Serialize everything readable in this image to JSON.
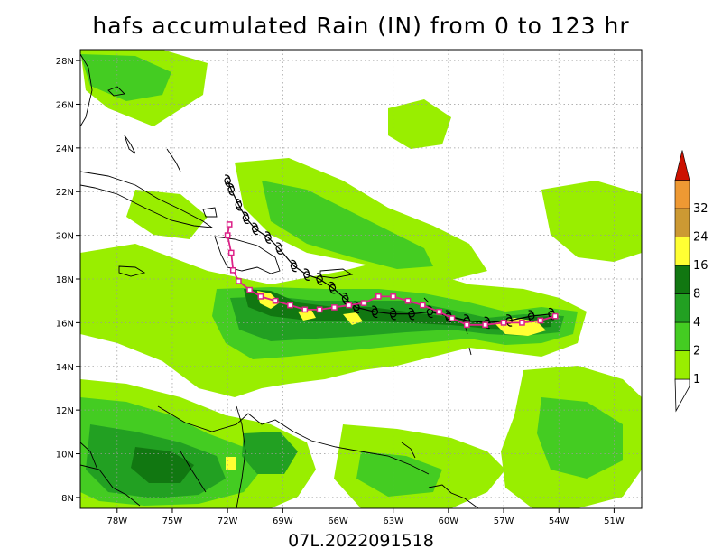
{
  "title": "hafs accumulated Rain (IN) from 0 to 123 hr",
  "footer": "07L.2022091518",
  "map": {
    "lon_range": [
      -80,
      -49.5
    ],
    "lat_range": [
      7.5,
      28.5
    ],
    "lon_ticks": [
      {
        "lon": -78,
        "label": "78W"
      },
      {
        "lon": -75,
        "label": "75W"
      },
      {
        "lon": -72,
        "label": "72W"
      },
      {
        "lon": -69,
        "label": "69W"
      },
      {
        "lon": -66,
        "label": "66W"
      },
      {
        "lon": -63,
        "label": "63W"
      },
      {
        "lon": -60,
        "label": "60W"
      },
      {
        "lon": -57,
        "label": "57W"
      },
      {
        "lon": -54,
        "label": "54W"
      },
      {
        "lon": -51,
        "label": "51W"
      }
    ],
    "lat_ticks": [
      {
        "lat": 8,
        "label": "8N"
      },
      {
        "lat": 10,
        "label": "10N"
      },
      {
        "lat": 12,
        "label": "12N"
      },
      {
        "lat": 14,
        "label": "14N"
      },
      {
        "lat": 16,
        "label": "16N"
      },
      {
        "lat": 18,
        "label": "18N"
      },
      {
        "lat": 20,
        "label": "20N"
      },
      {
        "lat": 22,
        "label": "22N"
      },
      {
        "lat": 24,
        "label": "24N"
      },
      {
        "lat": 26,
        "label": "26N"
      },
      {
        "lat": 28,
        "label": "28N"
      }
    ],
    "grid": true
  },
  "colorbar": {
    "levels": [
      {
        "label": "1",
        "color": "#99ee00"
      },
      {
        "label": "2",
        "color": "#44cc22"
      },
      {
        "label": "4",
        "color": "#22a022"
      },
      {
        "label": "8",
        "color": "#117711"
      },
      {
        "label": "16",
        "color": "#ffff33"
      },
      {
        "label": "24",
        "color": "#cc9933"
      },
      {
        "label": "32",
        "color": "#ee9933"
      }
    ],
    "top_color": "#cc1100"
  },
  "tracks": {
    "forecast_color": "#000000",
    "observed_color": "#dd2288",
    "forecast_track": [
      [
        -54.4,
        16.4
      ],
      [
        -55.5,
        16.3
      ],
      [
        -56.7,
        16.1
      ],
      [
        -57.9,
        16.0
      ],
      [
        -59.0,
        16.1
      ],
      [
        -60.0,
        16.3
      ],
      [
        -61.0,
        16.5
      ],
      [
        -62.0,
        16.4
      ],
      [
        -63.0,
        16.4
      ],
      [
        -64.0,
        16.5
      ],
      [
        -65.0,
        16.7
      ],
      [
        -65.6,
        17.1
      ],
      [
        -66.3,
        17.6
      ],
      [
        -67.0,
        18.0
      ],
      [
        -67.7,
        18.2
      ],
      [
        -68.4,
        18.6
      ],
      [
        -69.2,
        19.4
      ],
      [
        -69.8,
        19.9
      ],
      [
        -70.5,
        20.3
      ],
      [
        -71.0,
        20.8
      ],
      [
        -71.4,
        21.4
      ],
      [
        -71.8,
        22.1
      ],
      [
        -72.0,
        22.5
      ]
    ],
    "observed_track": [
      [
        -54.2,
        16.3
      ],
      [
        -55.0,
        16.1
      ],
      [
        -56.0,
        16.0
      ],
      [
        -57.0,
        16.0
      ],
      [
        -58.0,
        15.9
      ],
      [
        -59.0,
        15.9
      ],
      [
        -59.8,
        16.2
      ],
      [
        -60.5,
        16.5
      ],
      [
        -61.4,
        16.8
      ],
      [
        -62.2,
        17.0
      ],
      [
        -63.0,
        17.2
      ],
      [
        -63.8,
        17.2
      ],
      [
        -64.6,
        16.9
      ],
      [
        -65.4,
        16.8
      ],
      [
        -66.2,
        16.7
      ],
      [
        -67.0,
        16.6
      ],
      [
        -67.8,
        16.6
      ],
      [
        -68.6,
        16.8
      ],
      [
        -69.4,
        17.0
      ],
      [
        -70.2,
        17.2
      ],
      [
        -70.8,
        17.5
      ],
      [
        -71.4,
        17.9
      ],
      [
        -71.7,
        18.4
      ],
      [
        -71.8,
        19.2
      ],
      [
        -72.0,
        20.0
      ],
      [
        -71.9,
        20.5
      ]
    ]
  }
}
